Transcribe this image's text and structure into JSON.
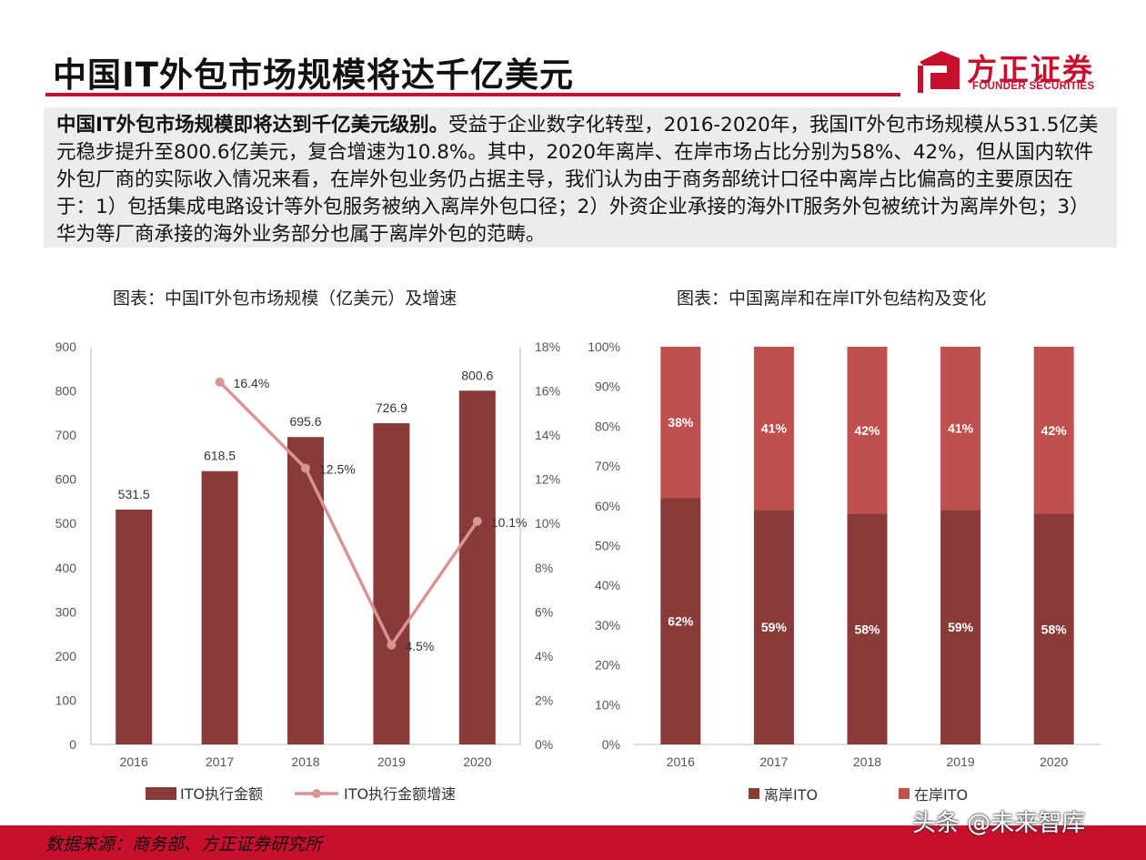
{
  "title": "中国IT外包市场规模将达千亿美元",
  "logo": {
    "cn": "方正证券",
    "en": "FOUNDER SECURITIES"
  },
  "summary": {
    "bold": "中国IT外包市场规模即将达到千亿美元级别。",
    "text": "受益于企业数字化转型，2016-2020年，我国IT外包市场规模从531.5亿美元稳步提升至800.6亿美元，复合增速为10.8%。其中，2020年离岸、在岸市场占比分别为58%、42%，但从国内软件外包厂商的实际收入情况来看，在岸外包业务仍占据主导，我们认为由于商务部统计口径中离岸占比偏高的主要原因在于：1）包括集成电路设计等外包服务被纳入离岸外包口径；2）外资企业承接的海外IT服务外包被统计为离岸外包；3）华为等厂商承接的海外业务部分也属于离岸外包的范畴。"
  },
  "footer": {
    "source": "数据来源：商务部、方正证券研究所",
    "watermark": "头条 @未来智库"
  },
  "colors": {
    "brand_red": "#c8102e",
    "bar_dark": "#8b3a3a",
    "line_pink": "#d99494",
    "bar_light": "#c0504d"
  },
  "chart_data": [
    {
      "type": "bar",
      "title": "图表：中国IT外包市场规模（亿美元）及增速",
      "categories": [
        "2016",
        "2017",
        "2018",
        "2019",
        "2020"
      ],
      "series": [
        {
          "name": "ITO执行金额",
          "kind": "bar",
          "axis": "left",
          "values": [
            531.5,
            618.5,
            695.6,
            726.9,
            800.6
          ],
          "labels": [
            "531.5",
            "618.5",
            "695.6",
            "726.9",
            "800.6"
          ]
        },
        {
          "name": "ITO执行金额增速",
          "kind": "line",
          "axis": "right",
          "values": [
            null,
            16.4,
            12.5,
            4.5,
            10.1
          ],
          "labels": [
            "",
            "16.4%",
            "12.5%",
            "4.5%",
            "10.1%"
          ]
        }
      ],
      "ylim_left": [
        0,
        900
      ],
      "yticks_left": [
        "0",
        "100",
        "200",
        "300",
        "400",
        "500",
        "600",
        "700",
        "800",
        "900"
      ],
      "ylim_right": [
        0,
        18
      ],
      "yticks_right": [
        "0%",
        "2%",
        "4%",
        "6%",
        "8%",
        "10%",
        "12%",
        "14%",
        "16%",
        "18%"
      ],
      "grid": false,
      "legend": "bottom"
    },
    {
      "type": "bar",
      "stacked": true,
      "title": "图表：中国离岸和在岸IT外包结构及变化",
      "categories": [
        "2016",
        "2017",
        "2018",
        "2019",
        "2020"
      ],
      "series": [
        {
          "name": "离岸ITO",
          "values": [
            62,
            59,
            58,
            59,
            58
          ],
          "labels": [
            "62%",
            "59%",
            "58%",
            "59%",
            "58%"
          ]
        },
        {
          "name": "在岸ITO",
          "values": [
            38,
            41,
            42,
            41,
            42
          ],
          "labels": [
            "38%",
            "41%",
            "42%",
            "41%",
            "42%"
          ]
        }
      ],
      "ylim": [
        0,
        100
      ],
      "yticks": [
        "0%",
        "10%",
        "20%",
        "30%",
        "40%",
        "50%",
        "60%",
        "70%",
        "80%",
        "90%",
        "100%"
      ],
      "grid": false,
      "legend": "bottom"
    }
  ]
}
